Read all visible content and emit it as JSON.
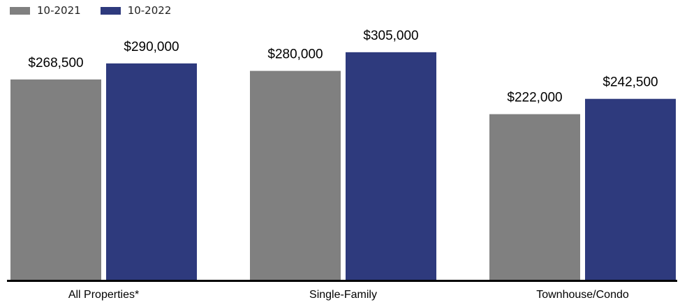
{
  "chart_data": {
    "type": "bar",
    "categories": [
      "All Properties*",
      "Single-Family",
      "Townhouse/Condo"
    ],
    "series": [
      {
        "name": "10-2021",
        "color": "#808080",
        "values": [
          268500,
          280000,
          222000
        ],
        "labels": [
          "$268,500",
          "$280,000",
          "$222,000"
        ]
      },
      {
        "name": "10-2022",
        "color": "#2E3A7D",
        "values": [
          290000,
          305000,
          242500
        ],
        "labels": [
          "$290,000",
          "$305,000",
          "$242,500"
        ]
      }
    ],
    "ylim": [
      0,
      375000
    ],
    "grid": false,
    "legend_position": "top-left",
    "axis_color": "#000000"
  }
}
